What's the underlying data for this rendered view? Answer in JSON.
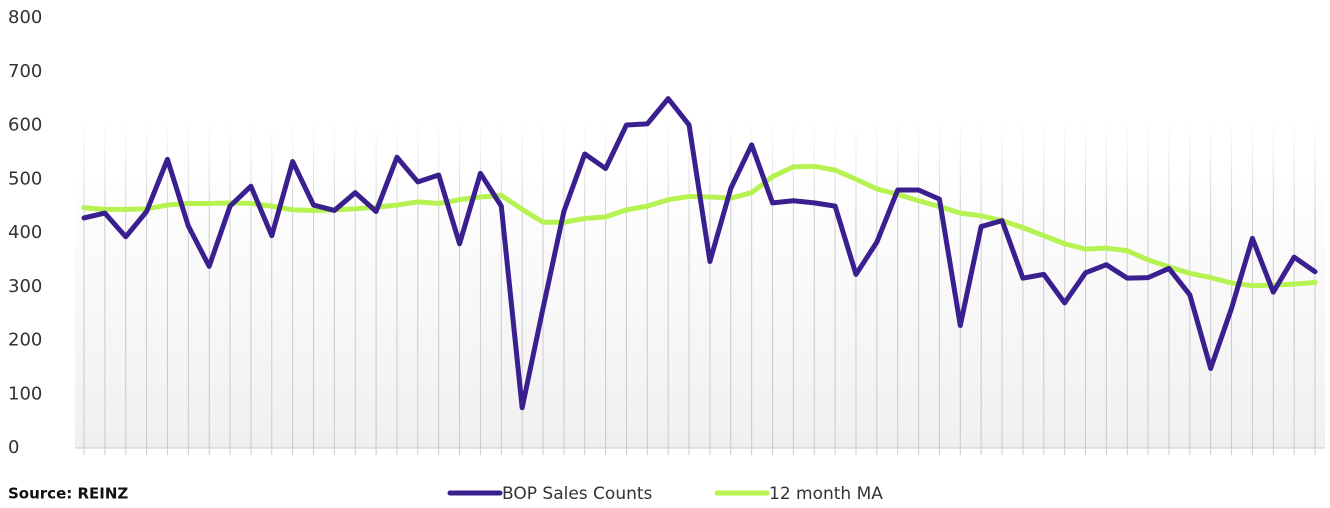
{
  "chart_data": {
    "type": "line",
    "source": "Source: REINZ",
    "series": [
      {
        "name": "BOP Sales Counts",
        "color": "#3a1f8f",
        "values": [
          428,
          437,
          393,
          440,
          537,
          413,
          338,
          450,
          487,
          395,
          533,
          452,
          442,
          475,
          440,
          541,
          495,
          508,
          380,
          511,
          450,
          75,
          260,
          440,
          547,
          520,
          601,
          603,
          650,
          601,
          347,
          483,
          564,
          456,
          460,
          456,
          450,
          323,
          383,
          480,
          480,
          463,
          228,
          412,
          423,
          316,
          323,
          270,
          326,
          341,
          316,
          317,
          334,
          285,
          148,
          260,
          390,
          290,
          355,
          328
        ]
      },
      {
        "name": "12 month MA",
        "color": "#b5f252",
        "values": [
          447,
          444,
          444,
          445,
          452,
          455,
          455,
          456,
          455,
          450,
          443,
          442,
          443,
          445,
          448,
          452,
          458,
          455,
          462,
          467,
          470,
          444,
          420,
          420,
          427,
          430,
          443,
          450,
          462,
          468,
          467,
          465,
          475,
          505,
          523,
          524,
          517,
          500,
          482,
          472,
          460,
          449,
          437,
          432,
          423,
          410,
          395,
          380,
          370,
          372,
          367,
          350,
          337,
          325,
          317,
          307,
          302,
          303,
          305,
          308
        ]
      }
    ],
    "ylim": [
      0,
      800
    ],
    "yticks": [
      0,
      100,
      200,
      300,
      400,
      500,
      600,
      700,
      800
    ]
  }
}
